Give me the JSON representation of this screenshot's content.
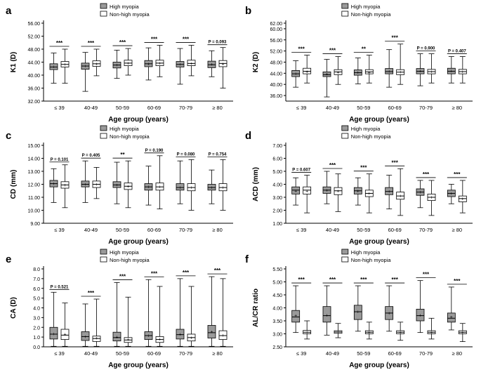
{
  "chart_data": [
    {
      "panel": "a",
      "type": "boxplot",
      "ylabel": "K1 (D)",
      "xlabel": "Age group (years)",
      "yticks": [
        "32.00",
        "36.00",
        "40.00",
        "44.00",
        "48.00",
        "52.00",
        "56.00"
      ],
      "ylim": [
        32,
        56
      ],
      "categories": [
        "≤ 39",
        "40-49",
        "50-59",
        "60-69",
        "70-79",
        "≥ 80"
      ],
      "legend": [
        "High myopia",
        "Non-high myopia"
      ],
      "significance": [
        "***",
        "***",
        "***",
        "***",
        "***",
        "P = 0.093"
      ],
      "series": [
        {
          "name": "High myopia",
          "boxes": [
            [
              37.5,
              41.7,
              42.5,
              43.5,
              46.8
            ],
            [
              35.0,
              41.8,
              42.8,
              43.7,
              47.0
            ],
            [
              39.0,
              42.2,
              43.1,
              44.0,
              47.7
            ],
            [
              38.5,
              42.6,
              43.5,
              44.5,
              48.4
            ],
            [
              37.2,
              42.5,
              43.3,
              44.2,
              48.2
            ],
            [
              39.5,
              42.3,
              43.2,
              44.3,
              47.5
            ]
          ],
          "means": [
            42.6,
            42.8,
            43.1,
            43.5,
            43.3,
            43.3
          ]
        },
        {
          "name": "Non-high myopia",
          "boxes": [
            [
              37.5,
              42.5,
              43.3,
              44.2,
              48.0
            ],
            [
              39.8,
              42.7,
              43.5,
              44.4,
              48.0
            ],
            [
              40.0,
              42.9,
              43.7,
              44.6,
              48.2
            ],
            [
              39.5,
              42.9,
              43.7,
              44.6,
              49.2
            ],
            [
              39.8,
              42.9,
              43.6,
              44.6,
              49.2
            ],
            [
              36.0,
              42.6,
              43.6,
              44.5,
              48.5
            ]
          ],
          "means": [
            43.3,
            43.5,
            43.7,
            43.7,
            43.6,
            43.5
          ]
        }
      ]
    },
    {
      "panel": "b",
      "type": "boxplot",
      "ylabel": "K2 (D)",
      "xlabel": "Age group (years)",
      "yticks": [
        "36.00",
        "40.00",
        "44.00",
        "48.00",
        "52.00",
        "56.00",
        "60.00"
      ],
      "ylim": [
        34,
        62
      ],
      "extra_ytick": "62.00",
      "categories": [
        "≤ 39",
        "40-49",
        "50-59",
        "60-69",
        "70-79",
        "≥ 80"
      ],
      "legend": [
        "High myopia",
        "Non-high myopia"
      ],
      "significance": [
        "***",
        "***",
        "**",
        "***",
        "P = 0.900",
        "P = 0.407"
      ],
      "series": [
        {
          "name": "High myopia",
          "boxes": [
            [
              39.0,
              42.8,
              43.8,
              45.0,
              48.5
            ],
            [
              35.5,
              42.8,
              43.5,
              44.5,
              49.0
            ],
            [
              40.2,
              43.3,
              44.2,
              45.2,
              49.5
            ],
            [
              39.0,
              43.8,
              44.6,
              45.7,
              52.5
            ],
            [
              39.5,
              43.8,
              44.7,
              45.7,
              51.0
            ],
            [
              40.5,
              43.8,
              44.7,
              45.8,
              50.0
            ]
          ],
          "means": [
            43.9,
            43.7,
            44.3,
            44.7,
            44.8,
            44.8
          ]
        },
        {
          "name": "Non-high myopia",
          "boxes": [
            [
              40.5,
              43.8,
              44.7,
              45.8,
              50.5
            ],
            [
              40.0,
              43.5,
              44.5,
              45.3,
              50.0
            ],
            [
              40.5,
              43.8,
              44.5,
              45.3,
              50.5
            ],
            [
              40.0,
              43.5,
              44.4,
              45.3,
              54.5
            ],
            [
              40.5,
              43.8,
              44.6,
              45.4,
              51.0
            ],
            [
              40.5,
              43.8,
              44.6,
              45.4,
              50.0
            ]
          ],
          "means": [
            44.6,
            44.3,
            44.4,
            44.5,
            44.6,
            44.6
          ]
        }
      ]
    },
    {
      "panel": "c",
      "type": "boxplot",
      "ylabel": "CD (mm)",
      "xlabel": "Age group (years)",
      "yticks": [
        "9.00",
        "10.00",
        "11.00",
        "12.00",
        "13.00",
        "14.00",
        "15.00"
      ],
      "ylim": [
        9,
        15
      ],
      "categories": [
        "≤ 39",
        "40-49",
        "50-59",
        "60-69",
        "70-79",
        "≥ 80"
      ],
      "legend": [
        "High myopia",
        "Non-high myopia"
      ],
      "significance": [
        "P = 0.101",
        "P = 0.405",
        "**",
        "P = 0.190",
        "P = 0.080",
        "P = 0.754"
      ],
      "series": [
        {
          "name": "High myopia",
          "boxes": [
            [
              10.6,
              11.8,
              12.05,
              12.3,
              13.2
            ],
            [
              10.6,
              11.8,
              12.0,
              12.25,
              13.8
            ],
            [
              10.5,
              11.75,
              11.95,
              12.2,
              13.7
            ],
            [
              10.4,
              11.55,
              11.8,
              12.05,
              13.4
            ],
            [
              10.5,
              11.55,
              11.75,
              12.05,
              13.8
            ],
            [
              10.5,
              11.55,
              11.75,
              12.0,
              13.1
            ]
          ],
          "means": [
            12.05,
            12.0,
            11.95,
            11.8,
            11.75,
            11.75
          ]
        },
        {
          "name": "Non-high myopia",
          "boxes": [
            [
              10.2,
              11.7,
              11.95,
              12.2,
              13.5
            ],
            [
              10.9,
              11.75,
              12.0,
              12.25,
              13.3
            ],
            [
              10.2,
              11.6,
              11.85,
              12.1,
              13.8
            ],
            [
              10.1,
              11.55,
              11.8,
              12.1,
              14.2
            ],
            [
              10.0,
              11.5,
              11.75,
              12.05,
              13.9
            ],
            [
              10.0,
              11.5,
              11.75,
              12.05,
              13.9
            ]
          ],
          "means": [
            11.95,
            12.0,
            11.85,
            11.8,
            11.75,
            11.75
          ]
        }
      ]
    },
    {
      "panel": "d",
      "type": "boxplot",
      "ylabel": "ACD (mm)",
      "xlabel": "Age group (years)",
      "yticks": [
        "1.00",
        "2.00",
        "3.00",
        "4.00",
        "5.00",
        "6.00",
        "7.00"
      ],
      "ylim": [
        1,
        7
      ],
      "categories": [
        "≤ 39",
        "40-49",
        "50-59",
        "60-69",
        "70-79",
        "≥ 80"
      ],
      "legend": [
        "High myopia",
        "Non-high myopia"
      ],
      "significance": [
        "P = 0.607",
        "***",
        "***",
        "***",
        "***",
        "***"
      ],
      "series": [
        {
          "name": "High myopia",
          "boxes": [
            [
              2.4,
              3.25,
              3.55,
              3.8,
              4.5
            ],
            [
              2.5,
              3.3,
              3.55,
              3.8,
              5.0
            ],
            [
              2.4,
              3.25,
              3.5,
              3.75,
              4.5
            ],
            [
              2.1,
              3.2,
              3.45,
              3.75,
              4.7
            ],
            [
              2.2,
              3.15,
              3.4,
              3.65,
              4.3
            ],
            [
              2.5,
              3.05,
              3.3,
              3.55,
              4.0
            ]
          ],
          "means": [
            3.5,
            3.55,
            3.5,
            3.45,
            3.4,
            3.3
          ]
        },
        {
          "name": "Non-high myopia",
          "boxes": [
            [
              1.8,
              3.25,
              3.55,
              3.8,
              4.7
            ],
            [
              1.9,
              3.2,
              3.5,
              3.75,
              4.8
            ],
            [
              1.8,
              3.05,
              3.3,
              3.55,
              4.8
            ],
            [
              1.6,
              2.85,
              3.1,
              3.4,
              5.2
            ],
            [
              1.6,
              2.75,
              3.0,
              3.25,
              4.3
            ],
            [
              1.8,
              2.65,
              2.9,
              3.1,
              4.3
            ]
          ],
          "means": [
            3.5,
            3.5,
            3.3,
            3.1,
            3.0,
            2.9
          ]
        }
      ]
    },
    {
      "panel": "e",
      "type": "boxplot",
      "ylabel": "CA (D)",
      "xlabel": "Age group (years)",
      "yticks": [
        "0.0",
        "1.0",
        "2.0",
        "3.0",
        "4.0",
        "5.0",
        "6.0",
        "7.0",
        "8.0"
      ],
      "ylim": [
        0,
        8
      ],
      "categories": [
        "≤ 39",
        "40-49",
        "50-59",
        "60-69",
        "70-79",
        "≥ 80"
      ],
      "legend": [
        "High myopia",
        "Non-high myopia"
      ],
      "significance": [
        "P = 0.521",
        "***",
        "***",
        "***",
        "***",
        "***"
      ],
      "series": [
        {
          "name": "High myopia",
          "boxes": [
            [
              0.05,
              0.8,
              1.3,
              2.0,
              5.6
            ],
            [
              0.05,
              0.65,
              1.05,
              1.55,
              4.4
            ],
            [
              0.05,
              0.6,
              0.95,
              1.5,
              6.6
            ],
            [
              0.05,
              0.75,
              1.15,
              1.55,
              6.9
            ],
            [
              0.05,
              0.8,
              1.25,
              1.8,
              7.0
            ],
            [
              0.05,
              0.9,
              1.45,
              2.2,
              7.2
            ]
          ],
          "means": [
            1.35,
            1.05,
            1.0,
            1.15,
            1.3,
            1.55
          ]
        },
        {
          "name": "Non-high myopia",
          "boxes": [
            [
              0.05,
              0.75,
              1.2,
              1.8,
              4.5
            ],
            [
              0.05,
              0.55,
              0.85,
              1.1,
              4.9
            ],
            [
              0.05,
              0.45,
              0.7,
              0.95,
              5.1
            ],
            [
              0.05,
              0.45,
              0.75,
              1.05,
              6.2
            ],
            [
              0.05,
              0.6,
              0.95,
              1.3,
              6.2
            ],
            [
              0.05,
              0.75,
              1.15,
              1.65,
              7.0
            ]
          ],
          "means": [
            1.3,
            0.9,
            0.75,
            0.8,
            0.95,
            1.2
          ]
        }
      ]
    },
    {
      "panel": "f",
      "type": "boxplot",
      "ylabel": "AL/CR ratio",
      "xlabel": "Age group (years)",
      "yticks": [
        "2.50",
        "3.00",
        "3.50",
        "4.00",
        "4.50",
        "5.00",
        "5.50"
      ],
      "ylim": [
        2.5,
        5.5
      ],
      "categories": [
        "≤ 39",
        "40-49",
        "50-59",
        "60-69",
        "70-79",
        "≥ 80"
      ],
      "legend": [
        "High myopia",
        "Non-high myopia"
      ],
      "significance": [
        "***",
        "***",
        "***",
        "***",
        "***",
        "***"
      ],
      "series": [
        {
          "name": "High myopia",
          "boxes": [
            [
              3.05,
              3.45,
              3.65,
              3.9,
              4.85
            ],
            [
              2.95,
              3.45,
              3.7,
              4.05,
              4.85
            ],
            [
              3.1,
              3.55,
              3.85,
              4.1,
              4.85
            ],
            [
              3.1,
              3.55,
              3.8,
              4.05,
              4.85
            ],
            [
              3.05,
              3.5,
              3.7,
              3.95,
              5.05
            ],
            [
              3.15,
              3.45,
              3.6,
              3.8,
              4.8
            ]
          ],
          "means": [
            3.7,
            3.72,
            3.85,
            3.8,
            3.72,
            3.65
          ]
        },
        {
          "name": "Non-high myopia",
          "boxes": [
            [
              2.8,
              3.0,
              3.06,
              3.13,
              3.5
            ],
            [
              2.85,
              3.02,
              3.07,
              3.12,
              3.4
            ],
            [
              2.8,
              3.0,
              3.06,
              3.12,
              3.45
            ],
            [
              2.75,
              3.0,
              3.06,
              3.12,
              3.45
            ],
            [
              2.8,
              3.0,
              3.06,
              3.12,
              3.6
            ],
            [
              2.7,
              3.0,
              3.06,
              3.12,
              3.4
            ]
          ],
          "means": [
            3.07,
            3.08,
            3.06,
            3.06,
            3.06,
            3.06
          ]
        }
      ]
    }
  ]
}
